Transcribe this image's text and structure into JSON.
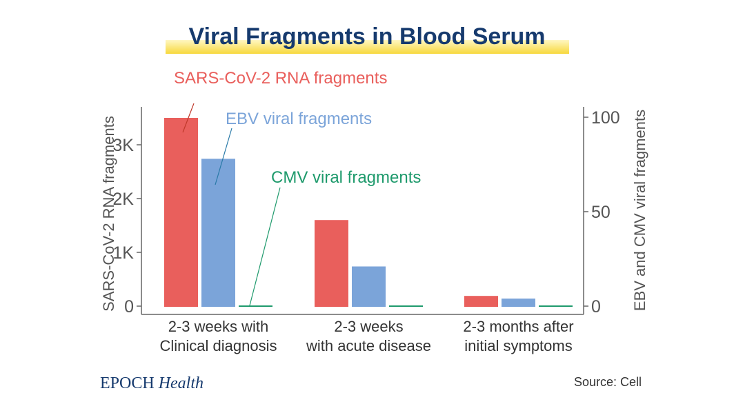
{
  "chart_data": {
    "type": "bar",
    "title": "Viral Fragments in Blood Serum",
    "categories": [
      [
        "2-3 weeks with",
        "Clinical diagnosis"
      ],
      [
        "2-3 weeks",
        "with acute disease"
      ],
      [
        "2-3 months after",
        "initial symptoms"
      ]
    ],
    "series": [
      {
        "name": "SARS-CoV-2 RNA fragments",
        "axis": "left",
        "color": "#e95f5c",
        "values": [
          3500,
          1600,
          190
        ]
      },
      {
        "name": "EBV viral fragments",
        "axis": "right",
        "color": "#7ba4d9",
        "values": [
          78,
          21,
          4
        ]
      },
      {
        "name": "CMV viral fragments",
        "axis": "right",
        "color": "#1e9a6c",
        "values": [
          0.3,
          0.3,
          0.3
        ]
      }
    ],
    "ylabel_left": "SARS-CoV-2 RNA fragments",
    "ylabel_right": "EBV and CMV viral fragments",
    "ylim_left": [
      0,
      3500
    ],
    "ylim_right": [
      0,
      100
    ],
    "yticks_left": [
      {
        "v": 0,
        "label": "0"
      },
      {
        "v": 1000,
        "label": "1K"
      },
      {
        "v": 2000,
        "label": "2K"
      },
      {
        "v": 3000,
        "label": "3K"
      }
    ],
    "yticks_right": [
      {
        "v": 0,
        "label": "0"
      },
      {
        "v": 50,
        "label": "50"
      },
      {
        "v": 100,
        "label": "100"
      }
    ],
    "grid": false,
    "legend": "inline annotations"
  },
  "brand": {
    "epoch": "EPOCH",
    "health": "Health"
  },
  "source": "Source: Cell",
  "colors": {
    "title": "#163a6e",
    "highlight": "#f7dc4a",
    "axis": "#666666"
  }
}
